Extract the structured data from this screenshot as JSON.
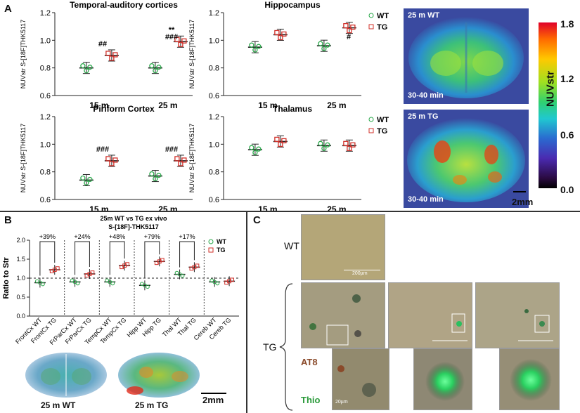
{
  "panels": {
    "A": "A",
    "B": "B",
    "C": "C"
  },
  "panelA": {
    "y_axis_label": "NUVstr S-[18F]THK5117",
    "y_ticks": [
      "0.6",
      "0.8",
      "1.0",
      "1.2"
    ],
    "x_categories": [
      "15 m",
      "25 m"
    ],
    "legend": {
      "wt": "WT",
      "tg": "TG"
    },
    "plots": [
      {
        "title": "Temporal-auditory cortices",
        "annotations": [
          "##",
          "**",
          "###"
        ]
      },
      {
        "title": "Hippocampus",
        "annotations": [
          "#"
        ]
      },
      {
        "title": "Piriform Cortex",
        "annotations": [
          "###",
          "###"
        ]
      },
      {
        "title": "Thalamus",
        "annotations": []
      }
    ],
    "pet": {
      "top_label": "25 m WT",
      "bottom_label": "25 m TG",
      "time_top": "30-40 min",
      "time_bottom": "30-40 min",
      "scale": "2mm"
    },
    "colorbar": {
      "max": "1.8",
      "mid_high": "1.2",
      "mid_low": "0.6",
      "min": "0.0",
      "label": "NUVstr"
    }
  },
  "panelB": {
    "title_line1": "25m WT vs TG ex vivo",
    "title_line2": "S-[18F]-THK5117",
    "y_label": "Ratio to Str",
    "y_ticks": [
      "0.0",
      "0.5",
      "1.0",
      "1.5",
      "2.0"
    ],
    "legend": {
      "wt": "WT",
      "tg": "TG"
    },
    "percents": [
      "+39%",
      "+24%",
      "+48%",
      "+79%",
      "+17%"
    ],
    "x_labels": [
      "FrontCx WT",
      "FrontCx TG",
      "FrParCx WT",
      "FrParCx TG",
      "TempCx WT",
      "TempCx TG",
      "Hipp WT",
      "Hipp TG",
      "Thal WT",
      "Thal TG",
      "Cereb WT",
      "Cereb TG"
    ],
    "autorad": {
      "left": "25 m WT",
      "right": "25 m TG",
      "scale": "2mm"
    }
  },
  "panelC": {
    "wt_label": "WT",
    "tg_label": "TG",
    "scale_main": "200µm",
    "scale_zoom": "20µm",
    "stain1": "AT8",
    "stain2": "Thio"
  },
  "chart_data": [
    {
      "type": "scatter",
      "title": "Temporal-auditory cortices",
      "categories": [
        "15 m",
        "25 m"
      ],
      "ylabel": "NUVstr S-[18F]THK5117",
      "ylim": [
        0.6,
        1.2
      ],
      "series": [
        {
          "name": "WT",
          "values": [
            0.8,
            0.8
          ]
        },
        {
          "name": "TG",
          "values": [
            0.89,
            0.99
          ]
        }
      ]
    },
    {
      "type": "scatter",
      "title": "Hippocampus",
      "categories": [
        "15 m",
        "25 m"
      ],
      "ylabel": "NUVstr S-[18F]THK5117",
      "ylim": [
        0.6,
        1.2
      ],
      "series": [
        {
          "name": "WT",
          "values": [
            0.95,
            0.96
          ]
        },
        {
          "name": "TG",
          "values": [
            1.04,
            1.09
          ]
        }
      ]
    },
    {
      "type": "scatter",
      "title": "Piriform Cortex",
      "categories": [
        "15 m",
        "25 m"
      ],
      "ylabel": "NUVstr S-[18F]THK5117",
      "ylim": [
        0.6,
        1.2
      ],
      "series": [
        {
          "name": "WT",
          "values": [
            0.74,
            0.77
          ]
        },
        {
          "name": "TG",
          "values": [
            0.88,
            0.88
          ]
        }
      ]
    },
    {
      "type": "scatter",
      "title": "Thalamus",
      "categories": [
        "15 m",
        "25 m"
      ],
      "ylabel": "NUVstr S-[18F]THK5117",
      "ylim": [
        0.6,
        1.2
      ],
      "series": [
        {
          "name": "WT",
          "values": [
            0.96,
            0.99
          ]
        },
        {
          "name": "TG",
          "values": [
            1.02,
            0.99
          ]
        }
      ]
    },
    {
      "type": "scatter",
      "title": "25m WT vs TG ex vivo",
      "ylabel": "Ratio to Str",
      "ylim": [
        0,
        2
      ],
      "categories": [
        "FrontCx",
        "FrParCx",
        "TempCx",
        "Hipp",
        "Thal",
        "Cereb"
      ],
      "series": [
        {
          "name": "WT",
          "values": [
            0.88,
            0.9,
            0.9,
            0.81,
            1.1,
            0.9
          ]
        },
        {
          "name": "TG",
          "values": [
            1.22,
            1.11,
            1.33,
            1.44,
            1.29,
            0.92
          ]
        }
      ]
    }
  ]
}
